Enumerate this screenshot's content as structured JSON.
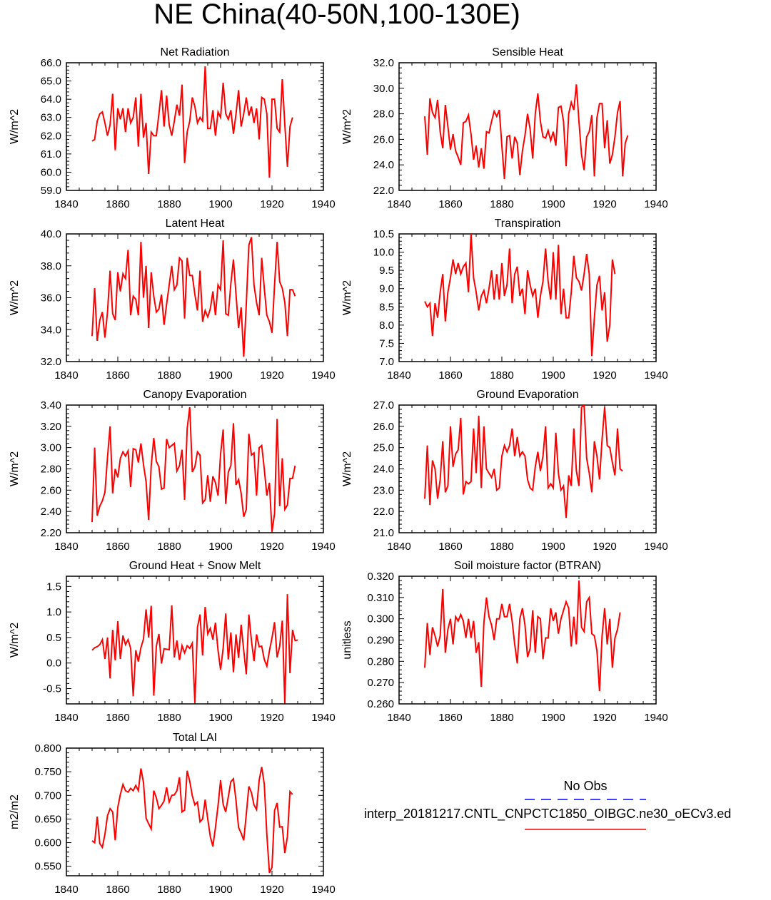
{
  "title": "NE China(40-50N,100-130E)",
  "line_color": "#ff0000",
  "obs_line_color": "#0000ff",
  "legend": {
    "obs_label": "No Obs",
    "model_label": "interp_20181217.CNTL_CNPCTC1850_OIBGC.ne30_oECv3.ed"
  },
  "chart_data": [
    {
      "type": "line",
      "title": "Net Radiation",
      "ylabel": "W/m^2",
      "xlim": [
        1840,
        1940
      ],
      "ylim": [
        59,
        66
      ],
      "x_ticks": [
        "1840",
        "1860",
        "1880",
        "1900",
        "1920",
        "1940"
      ],
      "y_ticks": [
        "59.0",
        "60.0",
        "61.0",
        "62.0",
        "63.0",
        "64.0",
        "65.0",
        "66.0"
      ],
      "x_start": 1850,
      "values": [
        61.7,
        61.8,
        62.8,
        63.2,
        63.3,
        62.7,
        62.0,
        62.6,
        64.3,
        61.2,
        63.5,
        62.9,
        63.5,
        62.2,
        63.5,
        62.7,
        63.0,
        64.1,
        61.4,
        64.3,
        61.9,
        62.7,
        59.9,
        62.2,
        62.0,
        62.0,
        63.2,
        64.5,
        62.5,
        64.2,
        62.6,
        62.0,
        62.8,
        63.7,
        63.1,
        64.8,
        60.5,
        62.2,
        62.8,
        64.1,
        63.6,
        62.7,
        63.0,
        62.8,
        65.8,
        62.4,
        62.4,
        63.4,
        62.0,
        63.3,
        63.0,
        64.9,
        63.2,
        62.9,
        63.4,
        62.1,
        63.2,
        64.5,
        62.5,
        63.2,
        64.1,
        63.1,
        63.6,
        62.7,
        63.5,
        61.8,
        64.1,
        64.0,
        63.2,
        59.7,
        64.0,
        64.0,
        62.4,
        62.2,
        65.1,
        62.6,
        60.3,
        62.5,
        63.0
      ]
    },
    {
      "type": "line",
      "title": "Sensible Heat",
      "ylabel": "W/m^2",
      "xlim": [
        1840,
        1940
      ],
      "ylim": [
        22,
        32
      ],
      "x_ticks": [
        "1840",
        "1860",
        "1880",
        "1900",
        "1920",
        "1940"
      ],
      "y_ticks": [
        "22.0",
        "24.0",
        "26.0",
        "28.0",
        "30.0",
        "32.0"
      ],
      "x_start": 1850,
      "values": [
        27.8,
        24.8,
        29.2,
        28.1,
        27.7,
        29.1,
        26.6,
        25.3,
        28.7,
        27.0,
        25.2,
        26.4,
        25.1,
        24.6,
        24.0,
        27.3,
        27.4,
        27.9,
        26.4,
        24.4,
        25.5,
        23.8,
        25.3,
        23.7,
        26.6,
        26.5,
        27.4,
        28.2,
        27.8,
        28.3,
        25.5,
        22.9,
        26.2,
        26.3,
        24.5,
        26.2,
        25.7,
        23.2,
        25.1,
        26.3,
        28.0,
        26.8,
        24.5,
        28.0,
        29.6,
        27.4,
        26.2,
        26.1,
        26.7,
        25.9,
        26.6,
        25.5,
        28.5,
        28.6,
        27.4,
        23.9,
        28.0,
        28.9,
        28.3,
        30.3,
        27.4,
        24.8,
        23.6,
        26.2,
        26.6,
        27.9,
        23.1,
        27.7,
        28.8,
        28.8,
        25.3,
        27.5,
        24.1,
        24.8,
        26.2,
        28.1,
        29.0,
        23.1,
        25.7,
        26.3
      ]
    },
    {
      "type": "line",
      "title": "Latent Heat",
      "ylabel": "W/m^2",
      "xlim": [
        1840,
        1940
      ],
      "ylim": [
        32,
        40
      ],
      "x_ticks": [
        "1840",
        "1860",
        "1880",
        "1900",
        "1920",
        "1940"
      ],
      "y_ticks": [
        "32.0",
        "34.0",
        "36.0",
        "38.0",
        "40.0"
      ],
      "x_start": 1850,
      "values": [
        33.6,
        36.6,
        33.3,
        34.6,
        35.1,
        33.5,
        35.1,
        37.7,
        35.0,
        34.6,
        37.6,
        36.4,
        37.5,
        37.2,
        39.0,
        34.9,
        36.1,
        35.9,
        34.9,
        39.5,
        36.0,
        38.0,
        34.1,
        37.6,
        36.1,
        35.1,
        35.3,
        36.2,
        34.3,
        35.6,
        36.8,
        38.0,
        36.5,
        36.8,
        38.5,
        38.3,
        34.7,
        38.5,
        37.4,
        37.4,
        36.2,
        35.2,
        37.7,
        34.5,
        35.2,
        34.8,
        35.3,
        36.4,
        34.9,
        36.8,
        36.5,
        39.6,
        35.0,
        34.9,
        36.9,
        38.4,
        36.2,
        34.1,
        35.4,
        32.3,
        35.6,
        39.3,
        39.8,
        36.8,
        35.7,
        34.9,
        38.5,
        36.6,
        34.9,
        34.5,
        33.8,
        36.8,
        39.5,
        37.0,
        36.6,
        35.7,
        33.6,
        36.5,
        36.5,
        36.1
      ]
    },
    {
      "type": "line",
      "title": "Transpiration",
      "ylabel": "W/m^2",
      "xlim": [
        1840,
        1940
      ],
      "ylim": [
        7,
        10.5
      ],
      "x_ticks": [
        "1840",
        "1860",
        "1880",
        "1900",
        "1920",
        "1940"
      ],
      "y_ticks": [
        "7.0",
        "7.5",
        "8.0",
        "8.5",
        "9.0",
        "9.5",
        "10.0",
        "10.5"
      ],
      "x_start": 1850,
      "values": [
        8.65,
        8.5,
        8.6,
        7.7,
        8.6,
        8.2,
        8.9,
        9.4,
        8.1,
        8.9,
        9.3,
        9.8,
        9.4,
        9.7,
        9.4,
        9.6,
        9.7,
        8.9,
        10.5,
        9.3,
        8.9,
        8.4,
        8.8,
        8.95,
        8.6,
        9.0,
        9.5,
        8.7,
        9.4,
        8.7,
        9.7,
        8.8,
        9.1,
        10.1,
        8.6,
        9.4,
        9.6,
        8.8,
        9.0,
        8.3,
        9.5,
        9.1,
        8.8,
        9.0,
        8.2,
        8.8,
        9.2,
        10.1,
        9.2,
        8.7,
        10.0,
        8.7,
        10.2,
        8.3,
        9.0,
        8.2,
        8.2,
        8.9,
        9.9,
        9.3,
        9.2,
        8.95,
        9.4,
        9.95,
        9.4,
        7.15,
        8.2,
        9.1,
        9.35,
        8.4,
        8.9,
        7.55,
        8.0,
        9.8,
        9.4
      ]
    },
    {
      "type": "line",
      "title": "Canopy Evaporation",
      "ylabel": "W/m^2",
      "xlim": [
        1840,
        1940
      ],
      "ylim": [
        2.2,
        3.4
      ],
      "x_ticks": [
        "1840",
        "1860",
        "1880",
        "1900",
        "1920",
        "1940"
      ],
      "y_ticks": [
        "2.20",
        "2.40",
        "2.60",
        "2.80",
        "3.00",
        "3.20",
        "3.40"
      ],
      "x_start": 1850,
      "values": [
        2.3,
        3.0,
        2.36,
        2.45,
        2.5,
        2.58,
        2.91,
        3.2,
        2.57,
        2.8,
        2.72,
        2.9,
        2.96,
        2.92,
        2.97,
        2.63,
        2.99,
        2.98,
        2.86,
        3.04,
        2.84,
        2.68,
        2.32,
        2.83,
        3.09,
        2.87,
        2.82,
        2.61,
        2.62,
        3.08,
        3.0,
        3.02,
        3.04,
        2.78,
        2.83,
        2.98,
        2.51,
        3.18,
        3.38,
        2.77,
        2.82,
        2.96,
        2.93,
        2.48,
        2.51,
        2.74,
        2.49,
        2.73,
        2.67,
        2.55,
        2.94,
        3.17,
        2.47,
        2.77,
        2.83,
        3.23,
        2.65,
        2.7,
        2.57,
        2.35,
        2.42,
        3.13,
        2.93,
        2.95,
        2.55,
        3.0,
        3.02,
        2.8,
        2.55,
        2.67,
        2.21,
        2.38,
        3.27,
        2.45,
        2.9,
        2.42,
        2.46,
        2.71,
        2.71,
        2.83
      ]
    },
    {
      "type": "line",
      "title": "Ground Evaporation",
      "ylabel": "W/m^2",
      "xlim": [
        1840,
        1940
      ],
      "ylim": [
        21,
        27
      ],
      "x_ticks": [
        "1840",
        "1860",
        "1880",
        "1900",
        "1920",
        "1940"
      ],
      "y_ticks": [
        "21.0",
        "22.0",
        "23.0",
        "24.0",
        "25.0",
        "26.0",
        "27.0"
      ],
      "x_start": 1850,
      "values": [
        22.6,
        25.1,
        22.3,
        24.4,
        24.0,
        22.6,
        23.5,
        25.3,
        22.9,
        23.2,
        26.0,
        24.1,
        24.7,
        24.9,
        26.4,
        22.8,
        23.4,
        23.3,
        23.4,
        25.9,
        23.8,
        26.5,
        23.1,
        26.0,
        24.0,
        23.8,
        23.6,
        24.0,
        23.0,
        23.1,
        24.6,
        25.1,
        24.8,
        25.1,
        25.9,
        24.6,
        25.5,
        24.6,
        24.8,
        24.6,
        23.5,
        23.1,
        23.0,
        24.1,
        24.8,
        23.9,
        24.6,
        26.0,
        23.1,
        23.3,
        23.1,
        25.7,
        23.8,
        23.0,
        23.2,
        21.7,
        23.7,
        23.2,
        25.9,
        23.9,
        23.2,
        26.9,
        27.0,
        24.5,
        23.8,
        22.9,
        25.3,
        24.6,
        23.5,
        25.4,
        26.9,
        25.1,
        25.0,
        24.3,
        23.7,
        25.9,
        24.0,
        23.9
      ]
    },
    {
      "type": "line",
      "title": "Ground Heat + Snow Melt",
      "ylabel": "W/m^2",
      "xlim": [
        1840,
        1940
      ],
      "ylim": [
        -0.8,
        1.7
      ],
      "x_ticks": [
        "1840",
        "1860",
        "1880",
        "1900",
        "1920",
        "1940"
      ],
      "y_ticks": [
        "-0.5",
        "0.0",
        "0.5",
        "1.0",
        "1.5"
      ],
      "x_start": 1850,
      "values": [
        0.25,
        0.3,
        0.32,
        0.36,
        0.46,
        0.08,
        0.5,
        -0.3,
        0.65,
        0.05,
        0.82,
        0.08,
        0.54,
        0.36,
        0.46,
        0.29,
        -0.65,
        0.25,
        0.03,
        0.3,
        0.47,
        1.05,
        0.5,
        1.12,
        -0.64,
        0.33,
        0.57,
        -0.01,
        0.28,
        0.27,
        0.26,
        1.13,
        0.11,
        0.44,
        0.06,
        0.34,
        0.2,
        0.34,
        0.29,
        0.39,
        -0.78,
        0.7,
        0.95,
        0.15,
        1.1,
        0.57,
        0.68,
        0.46,
        0.79,
        0.25,
        -0.13,
        0.29,
        0.97,
        0.07,
        0.6,
        -0.18,
        0.56,
        0.1,
        0.75,
        0.25,
        -0.22,
        0.95,
        0.44,
        0.04,
        0.56,
        0.32,
        0.33,
        0.07,
        -0.06,
        0.24,
        0.49,
        0.8,
        0.11,
        0.33,
        0.83,
        -0.79,
        1.35,
        -0.2,
        0.65,
        0.44,
        0.45
      ]
    },
    {
      "type": "line",
      "title": "Soil moisture factor (BTRAN)",
      "ylabel": "unitless",
      "xlim": [
        1840,
        1940
      ],
      "ylim": [
        0.26,
        0.32
      ],
      "x_ticks": [
        "1840",
        "1860",
        "1880",
        "1900",
        "1920",
        "1940"
      ],
      "y_ticks": [
        "0.260",
        "0.270",
        "0.280",
        "0.290",
        "0.300",
        "0.310",
        "0.320"
      ],
      "x_start": 1850,
      "values": [
        0.277,
        0.298,
        0.283,
        0.296,
        0.292,
        0.287,
        0.292,
        0.314,
        0.284,
        0.295,
        0.3,
        0.288,
        0.301,
        0.299,
        0.302,
        0.299,
        0.291,
        0.3,
        0.291,
        0.299,
        0.284,
        0.289,
        0.268,
        0.298,
        0.31,
        0.301,
        0.297,
        0.29,
        0.3,
        0.3,
        0.307,
        0.301,
        0.301,
        0.307,
        0.299,
        0.288,
        0.279,
        0.3,
        0.305,
        0.297,
        0.282,
        0.286,
        0.304,
        0.284,
        0.301,
        0.3,
        0.281,
        0.291,
        0.291,
        0.305,
        0.299,
        0.303,
        0.293,
        0.3,
        0.304,
        0.308,
        0.305,
        0.287,
        0.301,
        0.288,
        0.318,
        0.296,
        0.294,
        0.308,
        0.31,
        0.293,
        0.292,
        0.285,
        0.266,
        0.292,
        0.305,
        0.288,
        0.3,
        0.277,
        0.291,
        0.295,
        0.303
      ]
    },
    {
      "type": "line",
      "title": "Total LAI",
      "ylabel": "m2/m2",
      "xlim": [
        1840,
        1940
      ],
      "ylim": [
        0.53,
        0.8
      ],
      "x_ticks": [
        "1840",
        "1860",
        "1880",
        "1900",
        "1920",
        "1940"
      ],
      "y_ticks": [
        "0.550",
        "0.600",
        "0.650",
        "0.700",
        "0.750",
        "0.800"
      ],
      "x_start": 1850,
      "values": [
        0.604,
        0.6,
        0.655,
        0.598,
        0.59,
        0.618,
        0.657,
        0.672,
        0.665,
        0.605,
        0.675,
        0.702,
        0.723,
        0.71,
        0.707,
        0.715,
        0.71,
        0.721,
        0.71,
        0.757,
        0.727,
        0.652,
        0.64,
        0.629,
        0.71,
        0.695,
        0.672,
        0.679,
        0.688,
        0.717,
        0.686,
        0.7,
        0.701,
        0.71,
        0.738,
        0.665,
        0.669,
        0.752,
        0.73,
        0.699,
        0.68,
        0.686,
        0.644,
        0.65,
        0.691,
        0.65,
        0.613,
        0.592,
        0.632,
        0.678,
        0.732,
        0.681,
        0.665,
        0.697,
        0.729,
        0.735,
        0.689,
        0.632,
        0.62,
        0.605,
        0.66,
        0.719,
        0.706,
        0.68,
        0.67,
        0.732,
        0.76,
        0.724,
        0.617,
        0.536,
        0.548,
        0.668,
        0.684,
        0.633,
        0.634,
        0.578,
        0.613,
        0.708,
        0.702
      ]
    }
  ]
}
